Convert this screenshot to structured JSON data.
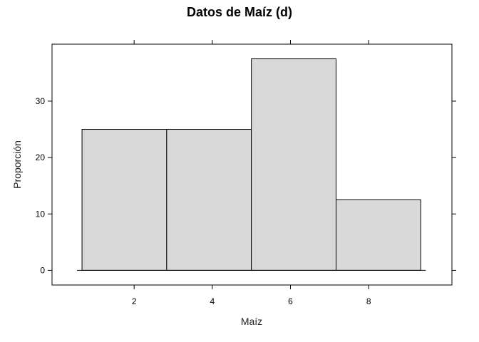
{
  "chart_data": {
    "type": "bar",
    "title": "Datos de Maíz (d)",
    "xlabel": "Maíz",
    "ylabel": "Proporción",
    "bins": [
      {
        "start": 0.667,
        "end": 2.833,
        "value": 25
      },
      {
        "start": 2.833,
        "end": 5.0,
        "value": 25
      },
      {
        "start": 5.0,
        "end": 7.167,
        "value": 37.5
      },
      {
        "start": 7.167,
        "end": 9.333,
        "value": 12.5
      }
    ],
    "xlim": [
      -0.1,
      10.13
    ],
    "ylim": [
      -2.6,
      40.1
    ],
    "xticks": [
      2,
      4,
      6,
      8
    ],
    "yticks": [
      0,
      10,
      20,
      30
    ],
    "bar_color": "#d9d9d9",
    "grid": false
  }
}
